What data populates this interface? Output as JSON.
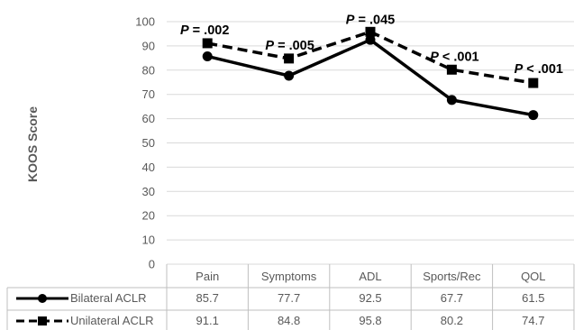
{
  "chart_data": {
    "type": "line",
    "title": "",
    "xlabel": "",
    "ylabel": "KOOS Score",
    "ylim": [
      0,
      100
    ],
    "yticks": [
      0,
      10,
      20,
      30,
      40,
      50,
      60,
      70,
      80,
      90,
      100
    ],
    "grid": true,
    "legend": "table-left",
    "categories": [
      "Pain",
      "Symptoms",
      "ADL",
      "Sports/Rec",
      "QOL"
    ],
    "series": [
      {
        "name": "Bilateral ACLR",
        "values": [
          85.7,
          77.7,
          92.5,
          67.7,
          61.5
        ],
        "value_labels": [
          "85.7",
          "77.7",
          "92.5",
          "67.7",
          "61.5"
        ],
        "color": "#000000",
        "line": "solid",
        "marker": "circle"
      },
      {
        "name": "Unilateral ACLR",
        "values": [
          91.1,
          84.8,
          95.8,
          80.2,
          74.7
        ],
        "value_labels": [
          "91.1",
          "84.8",
          "95.8",
          "80.2",
          "74.7"
        ],
        "color": "#000000",
        "line": "dashed",
        "marker": "square"
      }
    ],
    "annotations": [
      "P = .002",
      "P = .005",
      "P = .045",
      "P < .001",
      "P < .001"
    ]
  }
}
